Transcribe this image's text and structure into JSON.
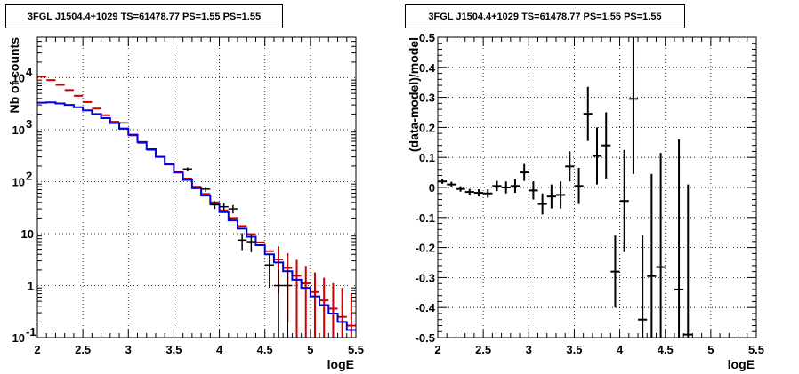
{
  "chart_data": [
    {
      "type": "line",
      "title": "3FGL J1504.4+1029 TS=61478.77 PS=1.55 PS=1.55",
      "xlabel": "logE",
      "ylabel": "Nb of counts",
      "xlim": [
        2,
        5.5
      ],
      "ylim": [
        0.1,
        60000
      ],
      "yscale": "log",
      "grid": true,
      "x_ticks": [
        "2",
        "2.5",
        "3",
        "3.5",
        "4",
        "4.5",
        "5",
        "5.5"
      ],
      "y_ticks": [
        {
          "value": 0.1,
          "label": "10",
          "sup": "-1"
        },
        {
          "value": 1,
          "label": "1",
          "sup": ""
        },
        {
          "value": 10,
          "label": "10",
          "sup": ""
        },
        {
          "value": 100,
          "label": "10",
          "sup": "2"
        },
        {
          "value": 1000,
          "label": "10",
          "sup": "3"
        },
        {
          "value": 10000,
          "label": "10",
          "sup": "4"
        }
      ],
      "bin_edges": [
        2.0,
        2.1,
        2.2,
        2.3,
        2.4,
        2.5,
        2.6,
        2.7,
        2.8,
        2.9,
        3.0,
        3.1,
        3.2,
        3.3,
        3.4,
        3.5,
        3.6,
        3.7,
        3.8,
        3.9,
        4.0,
        4.1,
        4.2,
        4.3,
        4.4,
        4.5,
        4.6,
        4.7,
        4.8,
        4.9,
        5.0,
        5.1,
        5.2,
        5.3,
        5.4,
        5.5
      ],
      "series": [
        {
          "role": "model_total",
          "color": "#cc0000",
          "style": "errorbar",
          "values": [
            10500,
            9000,
            7300,
            5800,
            4500,
            3400,
            2550,
            1900,
            1420,
            1050,
            780,
            560,
            410,
            300,
            220,
            155,
            115,
            80,
            58,
            40,
            28,
            20,
            14,
            9.8,
            6.8,
            4.6,
            3.2,
            2.2,
            1.55,
            1.1,
            0.75,
            0.52,
            0.36,
            0.25,
            0.17
          ],
          "errors": [
            0,
            0,
            0,
            0,
            0,
            0,
            0,
            0,
            0,
            0,
            0,
            0,
            0,
            0,
            0,
            0,
            0,
            0,
            0,
            0,
            0,
            0,
            0,
            0,
            0,
            0,
            2.5,
            2.0,
            1.6,
            1.3,
            1.05,
            0.9,
            0.75,
            0.65,
            0.55
          ]
        },
        {
          "role": "model_source",
          "color": "#0000dd",
          "style": "step",
          "values": [
            3300,
            3350,
            3200,
            3000,
            2700,
            2350,
            2000,
            1670,
            1340,
            1050,
            800,
            580,
            420,
            300,
            215,
            150,
            108,
            75,
            54,
            37,
            26,
            18,
            12.5,
            8.7,
            6.0,
            4.0,
            2.8,
            1.9,
            1.3,
            0.9,
            0.62,
            0.42,
            0.29,
            0.2,
            0.14
          ]
        },
        {
          "role": "data",
          "color": "#000000",
          "style": "errorbar",
          "x": [
            2.95,
            3.65,
            3.85,
            3.95,
            4.05,
            4.15,
            4.25,
            4.35,
            4.55,
            4.65,
            4.75
          ],
          "values": [
            1350,
            175,
            72,
            36,
            33,
            30,
            7.5,
            7.0,
            2.5,
            1.0,
            1.0
          ],
          "errors": [
            40,
            13,
            8.5,
            6,
            5.8,
            5.5,
            2.7,
            2.6,
            1.6,
            1.0,
            1.0
          ],
          "x_halfwidth": 0.05
        }
      ]
    },
    {
      "type": "scatter",
      "title": "3FGL J1504.4+1029 TS=61478.77 PS=1.55 PS=1.55",
      "xlabel": "logE",
      "ylabel": "(data-model)/model",
      "xlim": [
        2,
        5.5
      ],
      "ylim": [
        -0.5,
        0.5
      ],
      "grid": true,
      "x_ticks": [
        "2",
        "2.5",
        "3",
        "3.5",
        "4",
        "4.5",
        "5",
        "5.5"
      ],
      "y_ticks": [
        "-0.5",
        "-0.4",
        "-0.3",
        "-0.2",
        "-0.1",
        "0",
        "0.1",
        "0.2",
        "0.3",
        "0.4",
        "0.5"
      ],
      "series": [
        {
          "color": "#000000",
          "x_halfwidth": 0.05,
          "x": [
            2.05,
            2.15,
            2.25,
            2.35,
            2.45,
            2.55,
            2.65,
            2.75,
            2.85,
            2.95,
            3.05,
            3.15,
            3.25,
            3.35,
            3.45,
            3.55,
            3.65,
            3.75,
            3.85,
            3.95,
            4.05,
            4.15,
            4.25,
            4.35,
            4.45,
            4.65,
            4.75
          ],
          "y": [
            0.02,
            0.01,
            -0.005,
            -0.015,
            -0.018,
            -0.02,
            0.005,
            0.0,
            0.005,
            0.05,
            -0.01,
            -0.055,
            -0.03,
            -0.025,
            0.07,
            0.005,
            0.245,
            0.105,
            0.14,
            -0.28,
            -0.045,
            0.295,
            -0.44,
            -0.295,
            -0.265,
            -0.34,
            -0.49
          ],
          "errors": [
            0.008,
            0.009,
            0.009,
            0.01,
            0.012,
            0.014,
            0.017,
            0.02,
            0.023,
            0.028,
            0.03,
            0.035,
            0.04,
            0.045,
            0.05,
            0.06,
            0.09,
            0.095,
            0.11,
            0.12,
            0.17,
            0.25,
            0.28,
            0.34,
            0.38,
            0.5,
            0.5
          ]
        }
      ]
    }
  ]
}
